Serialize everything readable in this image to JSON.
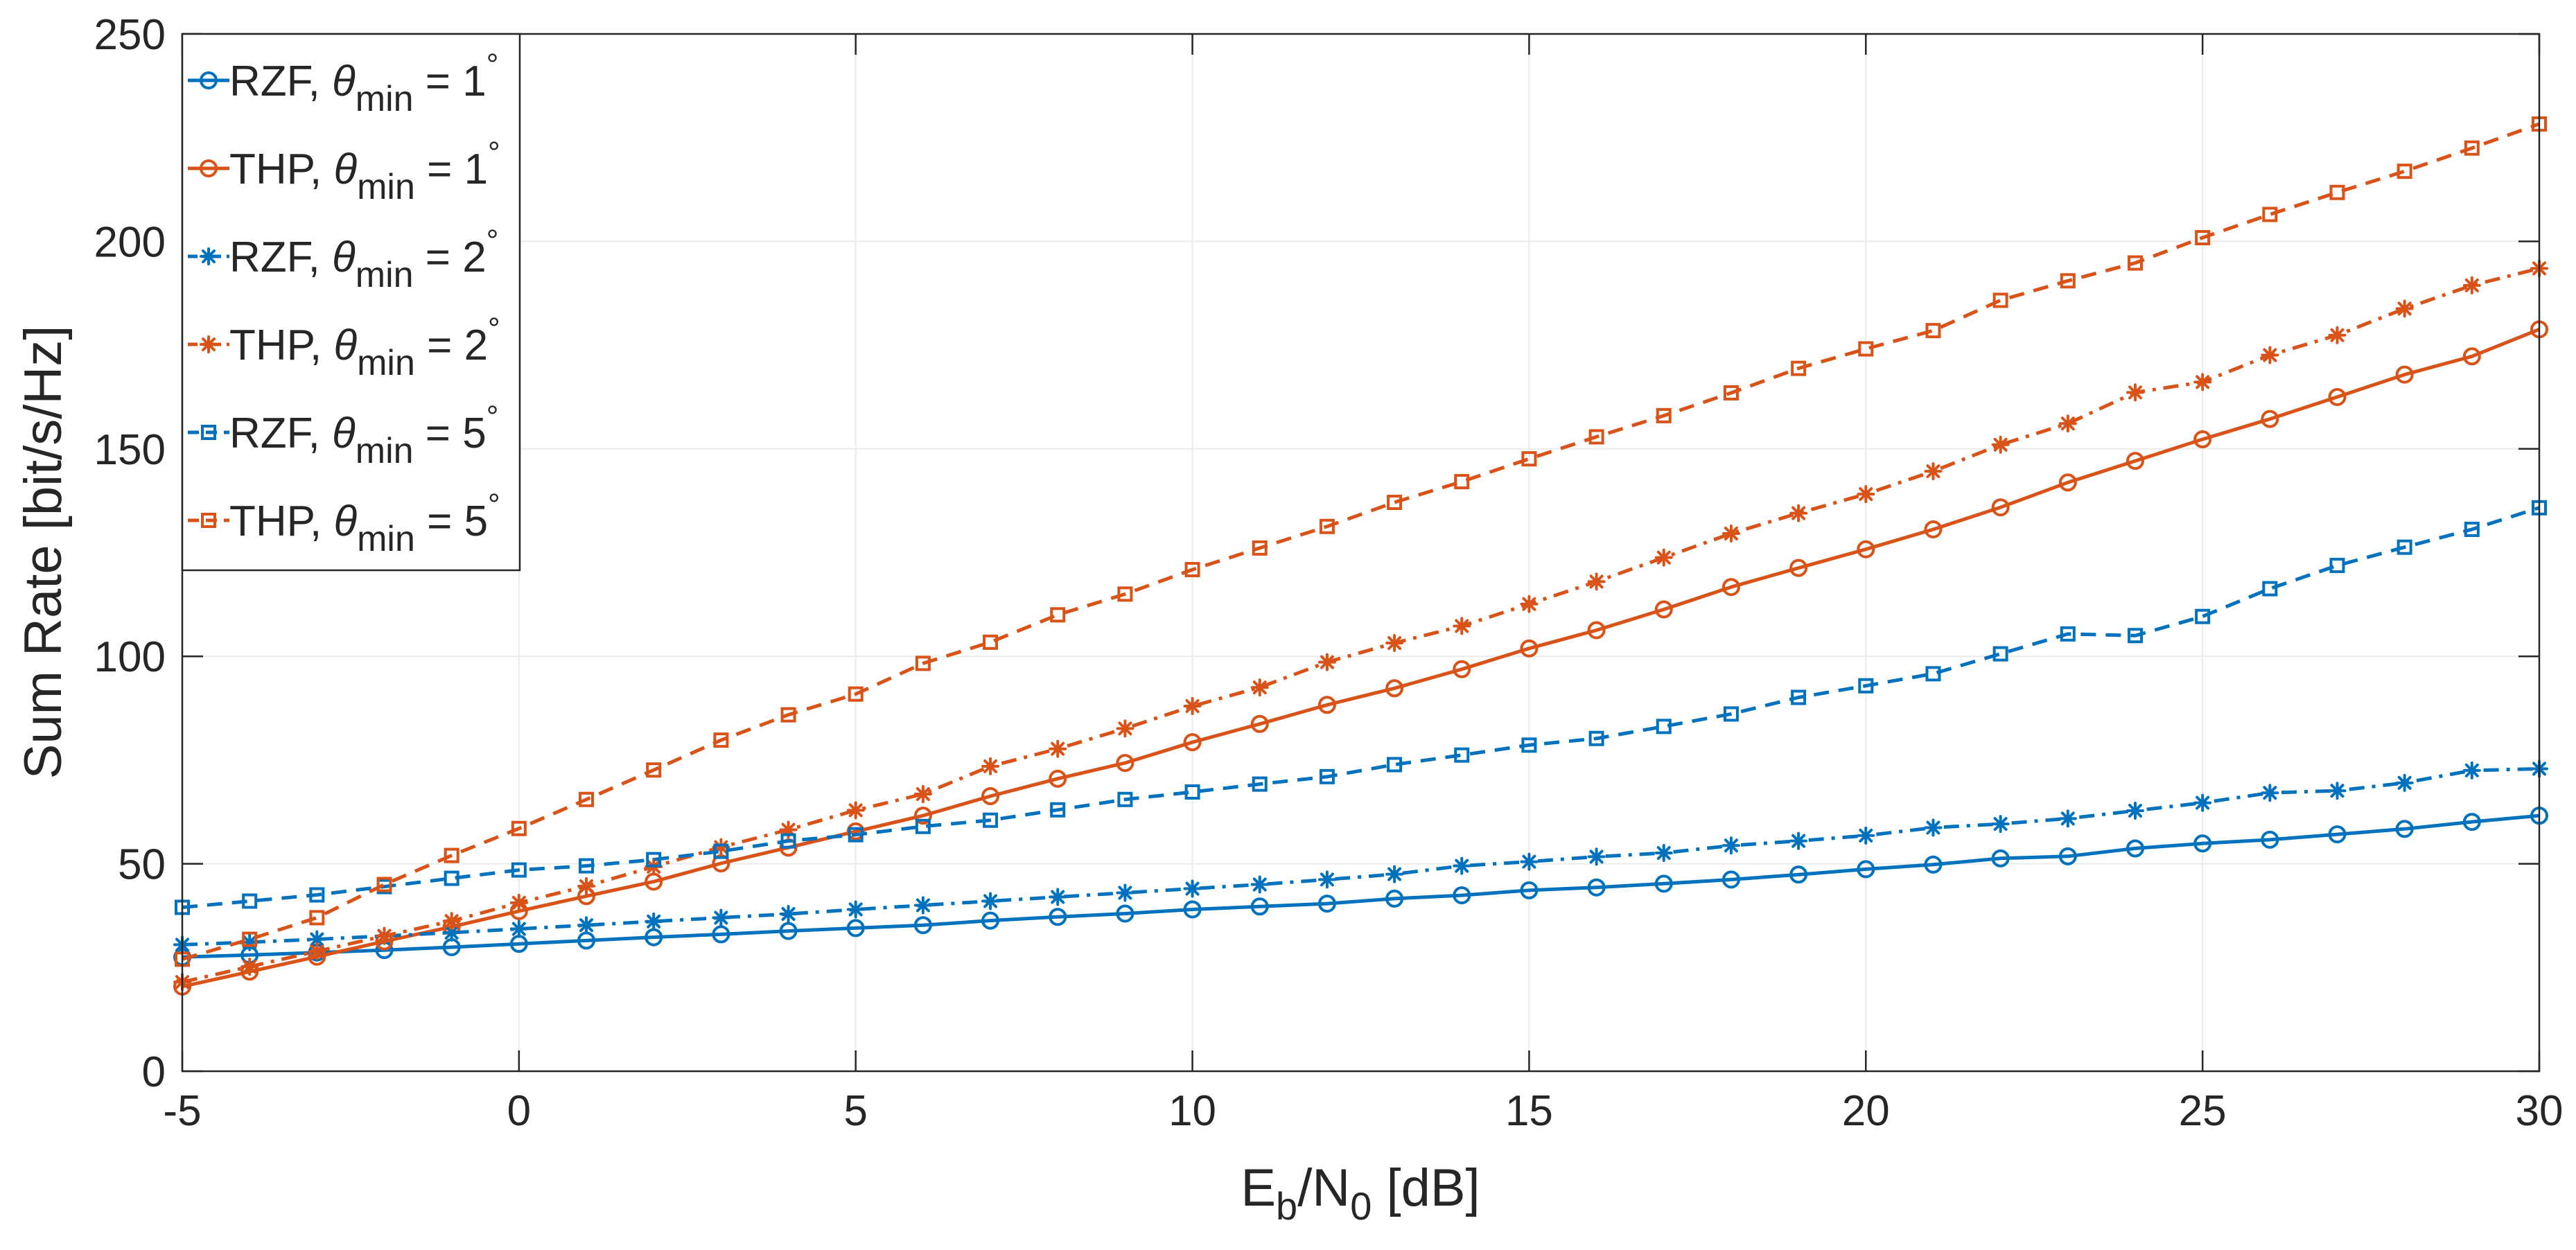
{
  "chart_data": {
    "type": "line",
    "title": "",
    "xlabel": {
      "main": "E",
      "sub1": "b",
      "mid": "/N",
      "sub2": "0",
      "tail": " [dB]"
    },
    "ylabel": "Sum Rate [bit/s/Hz]",
    "xlim": [
      -5,
      30
    ],
    "ylim": [
      0,
      250
    ],
    "xticks": [
      -5,
      0,
      5,
      10,
      15,
      20,
      25,
      30
    ],
    "yticks": [
      0,
      50,
      100,
      150,
      200,
      250
    ],
    "xtick_labels": [
      "-5",
      "0",
      "5",
      "10",
      "15",
      "20",
      "25",
      "30"
    ],
    "ytick_labels": [
      "0",
      "50",
      "100",
      "150",
      "200",
      "250"
    ],
    "grid": true,
    "legend_position": "top-left",
    "colors": {
      "blue": "#0072bd",
      "orange": "#d95319"
    },
    "x": [
      -5,
      -4,
      -3,
      -2,
      -1,
      0,
      1,
      2,
      3,
      4,
      5,
      6,
      7,
      8,
      9,
      10,
      11,
      12,
      13,
      14,
      15,
      16,
      17,
      18,
      19,
      20,
      21,
      22,
      23,
      24,
      25,
      26,
      27,
      28,
      29,
      30
    ],
    "series": [
      {
        "name": "RZF, θmin = 1°",
        "scheme": "RZF",
        "theta_symbol": "θ",
        "sub": "min",
        "value": "= 1",
        "degree": "°",
        "color": "#0072bd",
        "marker": "circle",
        "line_style": "solid",
        "values": [
          27.5,
          28,
          28.6,
          29.2,
          29.9,
          30.7,
          31.5,
          32.3,
          33,
          33.8,
          34.5,
          35.2,
          36.3,
          37.2,
          38,
          39,
          39.7,
          40.4,
          41.6,
          42.4,
          43.6,
          44.3,
          45.2,
          46.2,
          47.4,
          48.7,
          49.8,
          51.3,
          51.8,
          53.7,
          54.9,
          55.8,
          57.1,
          58.4,
          60.1,
          61.6
        ]
      },
      {
        "name": "THP, θmin = 1°",
        "scheme": "THP",
        "theta_symbol": "θ",
        "sub": "min",
        "value": "= 1",
        "degree": "°",
        "color": "#d95319",
        "marker": "circle",
        "line_style": "solid",
        "values": [
          20.4,
          24,
          27.6,
          31.3,
          34.8,
          38.6,
          42.2,
          45.7,
          50.1,
          53.9,
          57.8,
          61.6,
          66.3,
          70.5,
          74.3,
          79.3,
          83.7,
          88.3,
          92.3,
          96.9,
          101.9,
          106.3,
          111.3,
          116.7,
          121.3,
          125.8,
          130.6,
          135.9,
          141.9,
          147.1,
          152.3,
          157.2,
          162.5,
          167.9,
          172.3,
          178.8
        ]
      },
      {
        "name": "RZF, θmin = 2°",
        "scheme": "RZF",
        "theta_symbol": "θ",
        "sub": "min",
        "value": "= 2",
        "degree": "°",
        "color": "#0072bd",
        "marker": "star",
        "line_style": "dashdot",
        "values": [
          30.5,
          31.1,
          31.8,
          32.6,
          33.4,
          34.3,
          35.2,
          36.1,
          37,
          37.9,
          39,
          40,
          41,
          42,
          43,
          44,
          45,
          46.2,
          47.5,
          49.5,
          50.5,
          51.7,
          52.6,
          54.4,
          55.5,
          56.8,
          58.7,
          59.6,
          60.9,
          62.8,
          64.7,
          67.1,
          67.6,
          69.5,
          72.5,
          72.9
        ]
      },
      {
        "name": "THP, θmin = 2°",
        "scheme": "THP",
        "theta_symbol": "θ",
        "sub": "min",
        "value": "= 2",
        "degree": "°",
        "color": "#d95319",
        "marker": "star",
        "line_style": "dashdot",
        "values": [
          21.5,
          25.2,
          28.9,
          32.6,
          36.2,
          40.6,
          44.6,
          49.3,
          54,
          58.2,
          62.9,
          66.8,
          73.5,
          77.7,
          82.6,
          88,
          92.5,
          98.6,
          103.2,
          107.3,
          112.6,
          118,
          123.8,
          129.6,
          134.5,
          139.1,
          144.6,
          151,
          156.1,
          163.6,
          166.1,
          172.6,
          177.4,
          183.8,
          189.4,
          193.5
        ]
      },
      {
        "name": "RZF, θmin = 5°",
        "scheme": "RZF",
        "theta_symbol": "θ",
        "sub": "min",
        "value": "= 5",
        "degree": "°",
        "color": "#0072bd",
        "marker": "square",
        "line_style": "dashed",
        "values": [
          39.5,
          41,
          42.5,
          44.5,
          46.5,
          48.5,
          49.5,
          51,
          53,
          55.5,
          57,
          59,
          60.5,
          63,
          65.5,
          67.3,
          69.2,
          71,
          73.9,
          76.2,
          78.6,
          80.2,
          83.1,
          86.1,
          90.1,
          92.9,
          95.8,
          100.6,
          105.4,
          105,
          109.6,
          116.3,
          121.9,
          126.3,
          130.6,
          135.8
        ]
      },
      {
        "name": "THP, θmin = 5°",
        "scheme": "THP",
        "theta_symbol": "θ",
        "sub": "min",
        "value": "= 5",
        "degree": "°",
        "color": "#d95319",
        "marker": "square",
        "line_style": "dashed",
        "values": [
          27,
          31.8,
          37,
          45,
          52,
          58.5,
          65.5,
          72.6,
          79.8,
          85.9,
          90.9,
          98.3,
          103.4,
          110,
          115,
          120.9,
          126.1,
          131.3,
          137.1,
          142.1,
          147.6,
          152.9,
          158,
          163.5,
          169.4,
          174.1,
          178.5,
          185.8,
          190.5,
          194.8,
          200.9,
          206.5,
          211.8,
          216.9,
          222.5,
          228.3
        ]
      }
    ]
  }
}
